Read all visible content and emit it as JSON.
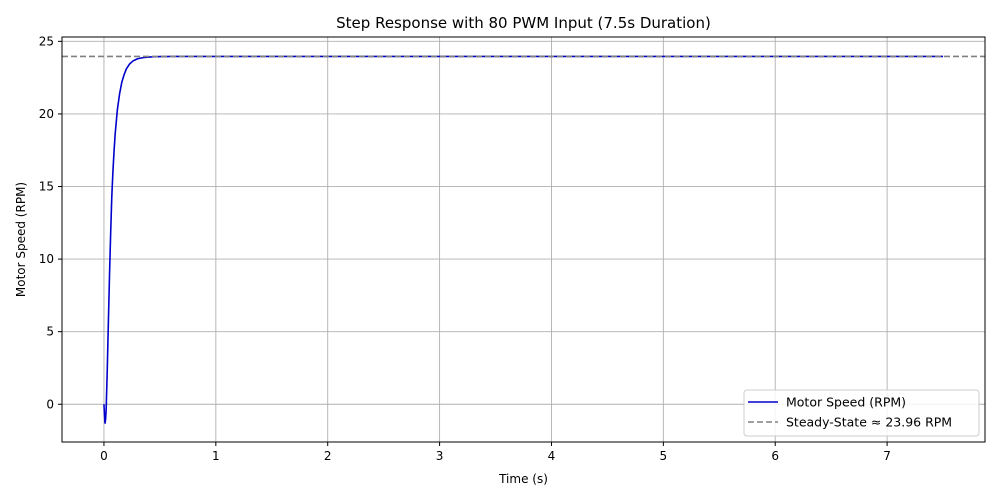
{
  "chart_data": {
    "type": "line",
    "title": "Step Response with 80 PWM Input (7.5s Duration)",
    "xlabel": "Time (s)",
    "ylabel": "Motor Speed (RPM)",
    "xlim": [
      -0.375,
      7.875
    ],
    "ylim": [
      -2.6,
      25.3
    ],
    "xticks": [
      0,
      1,
      2,
      3,
      4,
      5,
      6,
      7
    ],
    "yticks": [
      0,
      5,
      10,
      15,
      20,
      25
    ],
    "grid": true,
    "legend_position": "lower-right",
    "series": [
      {
        "name": "Motor Speed (RPM)",
        "color": "#0000cc",
        "style": "solid",
        "x": [
          0,
          0.005,
          0.01,
          0.015,
          0.02,
          0.03,
          0.04,
          0.05,
          0.06,
          0.07,
          0.08,
          0.09,
          0.1,
          0.12,
          0.14,
          0.16,
          0.18,
          0.2,
          0.23,
          0.26,
          0.3,
          0.35,
          0.4,
          0.45,
          0.5,
          0.55,
          0.6,
          0.7,
          0.8,
          1.0,
          2.0,
          3.0,
          4.0,
          5.0,
          6.0,
          7.0,
          7.5
        ],
        "y": [
          0,
          -0.8,
          -1.3,
          -1.0,
          -0.3,
          2.5,
          5.8,
          9.0,
          11.8,
          14.3,
          16.0,
          17.4,
          18.6,
          20.3,
          21.4,
          22.2,
          22.7,
          23.1,
          23.45,
          23.65,
          23.8,
          23.88,
          23.92,
          23.94,
          23.95,
          23.955,
          23.96,
          23.96,
          23.96,
          23.96,
          23.96,
          23.96,
          23.96,
          23.96,
          23.96,
          23.96,
          23.96
        ]
      },
      {
        "name": "Steady-State ≈ 23.96 RPM",
        "color": "#808080",
        "style": "dashed",
        "y_constant": 23.96
      }
    ]
  }
}
